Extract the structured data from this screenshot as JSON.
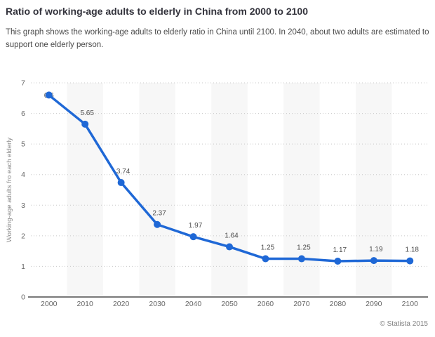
{
  "header": {
    "title": "Ratio of working-age adults to elderly in China from 2000 to 2100",
    "subtitle": "This graph shows the working-age adults to elderly ratio in China until 2100. In 2040, about two adults are estimated to support one elderly person."
  },
  "footer": {
    "source": "© Statista 2015"
  },
  "chart_data": {
    "type": "line",
    "title": "Ratio of working-age adults to elderly in China from 2000 to 2100",
    "categories": [
      "2000",
      "2010",
      "2020",
      "2030",
      "2040",
      "2050",
      "2060",
      "2070",
      "2080",
      "2090",
      "2100"
    ],
    "values": [
      6.6,
      5.65,
      3.74,
      2.37,
      1.97,
      1.64,
      1.25,
      1.25,
      1.17,
      1.19,
      1.18
    ],
    "point_labels": [
      "6.6",
      "5.65",
      "3.74",
      "2.37",
      "1.97",
      "1.64",
      "1.25",
      "1.25",
      "1.17",
      "1.19",
      "1.18"
    ],
    "xlabel": "",
    "ylabel": "Working-age adults fro each elderly",
    "ylim": [
      0,
      7
    ],
    "yticks": [
      0,
      1,
      2,
      3,
      4,
      5,
      6,
      7
    ],
    "grid": "horizontal-dotted",
    "legend": "none",
    "colors": {
      "line": "#1f68d6",
      "marker": "#1f68d6",
      "column_band": "#f7f7f7",
      "gridline": "#c8c8c8",
      "axis": "#7a7a7a",
      "tick_text": "#666666",
      "point_label_text": "#4c4c4c",
      "axis_title_text": "#8a8a8a"
    }
  }
}
